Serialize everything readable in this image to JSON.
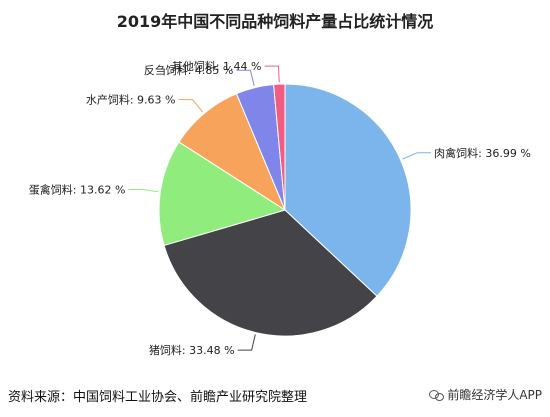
{
  "chart_data": {
    "type": "pie",
    "title": "2019年中国不同品种饲料产量占比统计情况",
    "unit": "%",
    "slices": [
      {
        "name": "肉禽饲料",
        "value": 36.99,
        "label": "肉禽饲料: 36.99 %",
        "color": "#7cb5ec"
      },
      {
        "name": "猪饲料",
        "value": 33.48,
        "label": "猪饲料: 33.48 %",
        "color": "#434348"
      },
      {
        "name": "蛋禽饲料",
        "value": 13.62,
        "label": "蛋禽饲料: 13.62 %",
        "color": "#90ed7d"
      },
      {
        "name": "水产饲料",
        "value": 9.63,
        "label": "水产饲料: 9.63 %",
        "color": "#f7a35c"
      },
      {
        "name": "反刍饲料",
        "value": 4.85,
        "label": "反刍饲料: 4.85 %",
        "color": "#8085e9"
      },
      {
        "name": "其他饲料",
        "value": 1.44,
        "label": "其他饲料: 1.44 %",
        "color": "#f15c80"
      }
    ]
  },
  "footer": {
    "source": "资料来源：中国饲料工业协会、前瞻产业研究院整理",
    "watermark": "前瞻经济学人APP"
  }
}
